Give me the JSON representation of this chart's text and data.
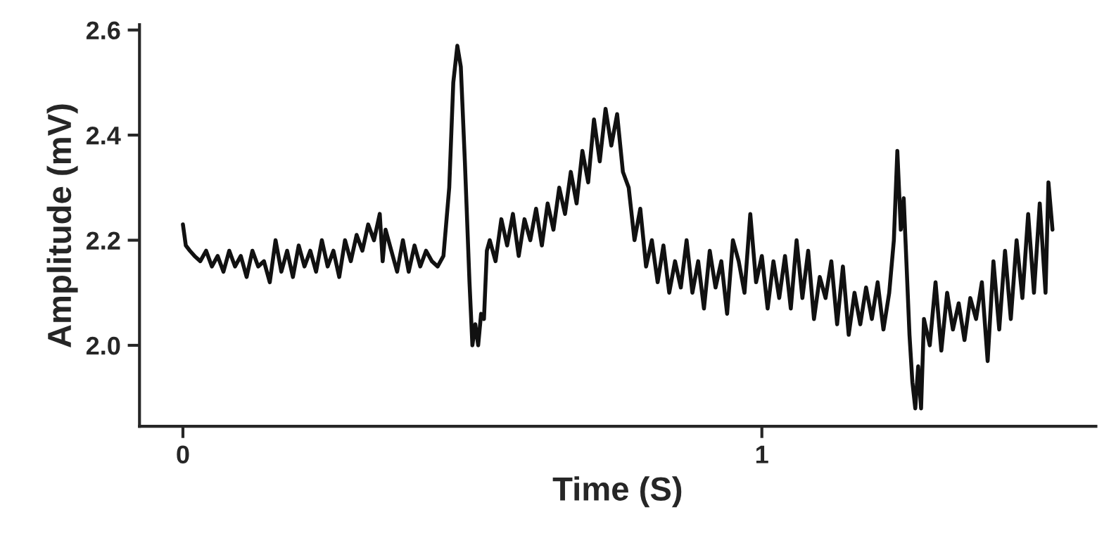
{
  "chart_data": {
    "type": "line",
    "xlabel": "Time (S)",
    "ylabel": "Amplitude (mV)",
    "xlim": [
      -0.075,
      1.577
    ],
    "ylim": [
      1.846,
      2.61
    ],
    "xticks": [
      0,
      1
    ],
    "yticks": [
      {
        "value": 2.0,
        "label": "2.0"
      },
      {
        "value": 2.2,
        "label": "2.2"
      },
      {
        "value": 2.4,
        "label": "2.4"
      },
      {
        "value": 2.6,
        "label": "2.6"
      }
    ],
    "grid": false,
    "marker": "none",
    "line_style": "solid",
    "series": [
      {
        "color": "#111111",
        "x": [
          0,
          0.005,
          0.012,
          0.02,
          0.03,
          0.04,
          0.05,
          0.06,
          0.07,
          0.08,
          0.09,
          0.1,
          0.11,
          0.12,
          0.13,
          0.14,
          0.15,
          0.16,
          0.17,
          0.18,
          0.19,
          0.2,
          0.21,
          0.22,
          0.23,
          0.24,
          0.25,
          0.26,
          0.27,
          0.28,
          0.29,
          0.3,
          0.31,
          0.32,
          0.33,
          0.34,
          0.345,
          0.35,
          0.36,
          0.37,
          0.38,
          0.39,
          0.4,
          0.41,
          0.42,
          0.43,
          0.44,
          0.45,
          0.46,
          0.467,
          0.474,
          0.48,
          0.487,
          0.495,
          0.5,
          0.505,
          0.51,
          0.515,
          0.52,
          0.525,
          0.53,
          0.54,
          0.55,
          0.56,
          0.57,
          0.58,
          0.59,
          0.6,
          0.61,
          0.62,
          0.63,
          0.64,
          0.65,
          0.66,
          0.67,
          0.68,
          0.69,
          0.7,
          0.71,
          0.72,
          0.73,
          0.74,
          0.75,
          0.76,
          0.77,
          0.78,
          0.79,
          0.8,
          0.81,
          0.82,
          0.83,
          0.84,
          0.85,
          0.86,
          0.87,
          0.88,
          0.89,
          0.9,
          0.91,
          0.92,
          0.93,
          0.94,
          0.95,
          0.96,
          0.97,
          0.98,
          0.99,
          1.0,
          1.01,
          1.02,
          1.03,
          1.04,
          1.05,
          1.06,
          1.07,
          1.08,
          1.09,
          1.1,
          1.11,
          1.12,
          1.13,
          1.14,
          1.15,
          1.16,
          1.17,
          1.18,
          1.19,
          1.2,
          1.21,
          1.22,
          1.228,
          1.234,
          1.24,
          1.245,
          1.25,
          1.255,
          1.26,
          1.265,
          1.27,
          1.275,
          1.28,
          1.29,
          1.3,
          1.31,
          1.32,
          1.33,
          1.34,
          1.35,
          1.36,
          1.37,
          1.38,
          1.39,
          1.4,
          1.41,
          1.42,
          1.43,
          1.44,
          1.45,
          1.46,
          1.47,
          1.48,
          1.49,
          1.495,
          1.502
        ],
        "values": [
          2.23,
          2.19,
          2.18,
          2.17,
          2.16,
          2.18,
          2.15,
          2.17,
          2.14,
          2.18,
          2.15,
          2.17,
          2.13,
          2.18,
          2.15,
          2.16,
          2.12,
          2.2,
          2.14,
          2.18,
          2.13,
          2.19,
          2.15,
          2.18,
          2.14,
          2.2,
          2.15,
          2.18,
          2.13,
          2.2,
          2.16,
          2.21,
          2.18,
          2.23,
          2.2,
          2.25,
          2.16,
          2.22,
          2.18,
          2.14,
          2.2,
          2.14,
          2.19,
          2.15,
          2.18,
          2.16,
          2.15,
          2.17,
          2.3,
          2.5,
          2.57,
          2.53,
          2.35,
          2.12,
          2.0,
          2.04,
          2.0,
          2.06,
          2.05,
          2.18,
          2.2,
          2.16,
          2.24,
          2.19,
          2.25,
          2.17,
          2.24,
          2.2,
          2.26,
          2.19,
          2.27,
          2.22,
          2.3,
          2.25,
          2.33,
          2.27,
          2.37,
          2.31,
          2.43,
          2.35,
          2.45,
          2.38,
          2.44,
          2.33,
          2.3,
          2.2,
          2.26,
          2.15,
          2.2,
          2.12,
          2.19,
          2.1,
          2.16,
          2.11,
          2.2,
          2.1,
          2.16,
          2.07,
          2.18,
          2.11,
          2.16,
          2.06,
          2.2,
          2.16,
          2.1,
          2.25,
          2.12,
          2.17,
          2.07,
          2.16,
          2.09,
          2.17,
          2.07,
          2.2,
          2.09,
          2.18,
          2.05,
          2.13,
          2.09,
          2.16,
          2.04,
          2.15,
          2.02,
          2.1,
          2.04,
          2.11,
          2.05,
          2.12,
          2.03,
          2.1,
          2.2,
          2.37,
          2.22,
          2.28,
          2.15,
          2.02,
          1.93,
          1.88,
          1.96,
          1.88,
          2.05,
          2.0,
          2.12,
          1.99,
          2.1,
          2.03,
          2.08,
          2.01,
          2.09,
          2.05,
          2.12,
          1.97,
          2.16,
          2.03,
          2.18,
          2.05,
          2.2,
          2.09,
          2.25,
          2.1,
          2.27,
          2.1,
          2.31,
          2.22
        ]
      }
    ]
  }
}
